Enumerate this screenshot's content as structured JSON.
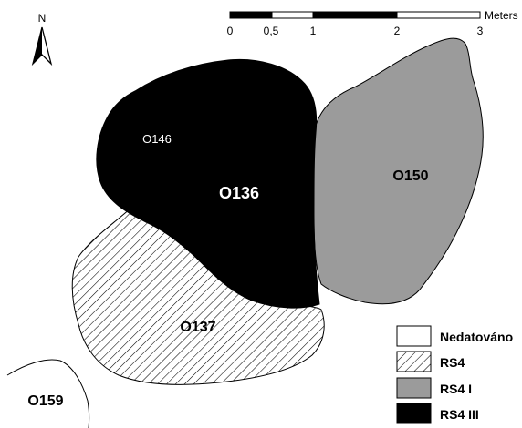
{
  "north_arrow": {
    "label": "N"
  },
  "scale_bar": {
    "unit": "Meters",
    "ticks": [
      "0",
      "0,5",
      "1",
      "2",
      "3"
    ]
  },
  "features": {
    "O136": "O136",
    "O146": "O146",
    "O150": "O150",
    "O137": "O137",
    "O159": "O159"
  },
  "legend": {
    "items": [
      {
        "label": "Nedatováno",
        "fill": "#ffffff"
      },
      {
        "label": "RS4",
        "fill": "hatch"
      },
      {
        "label": "RS4 I",
        "fill": "#9b9b9b"
      },
      {
        "label": "RS4 III",
        "fill": "#000000"
      }
    ]
  }
}
